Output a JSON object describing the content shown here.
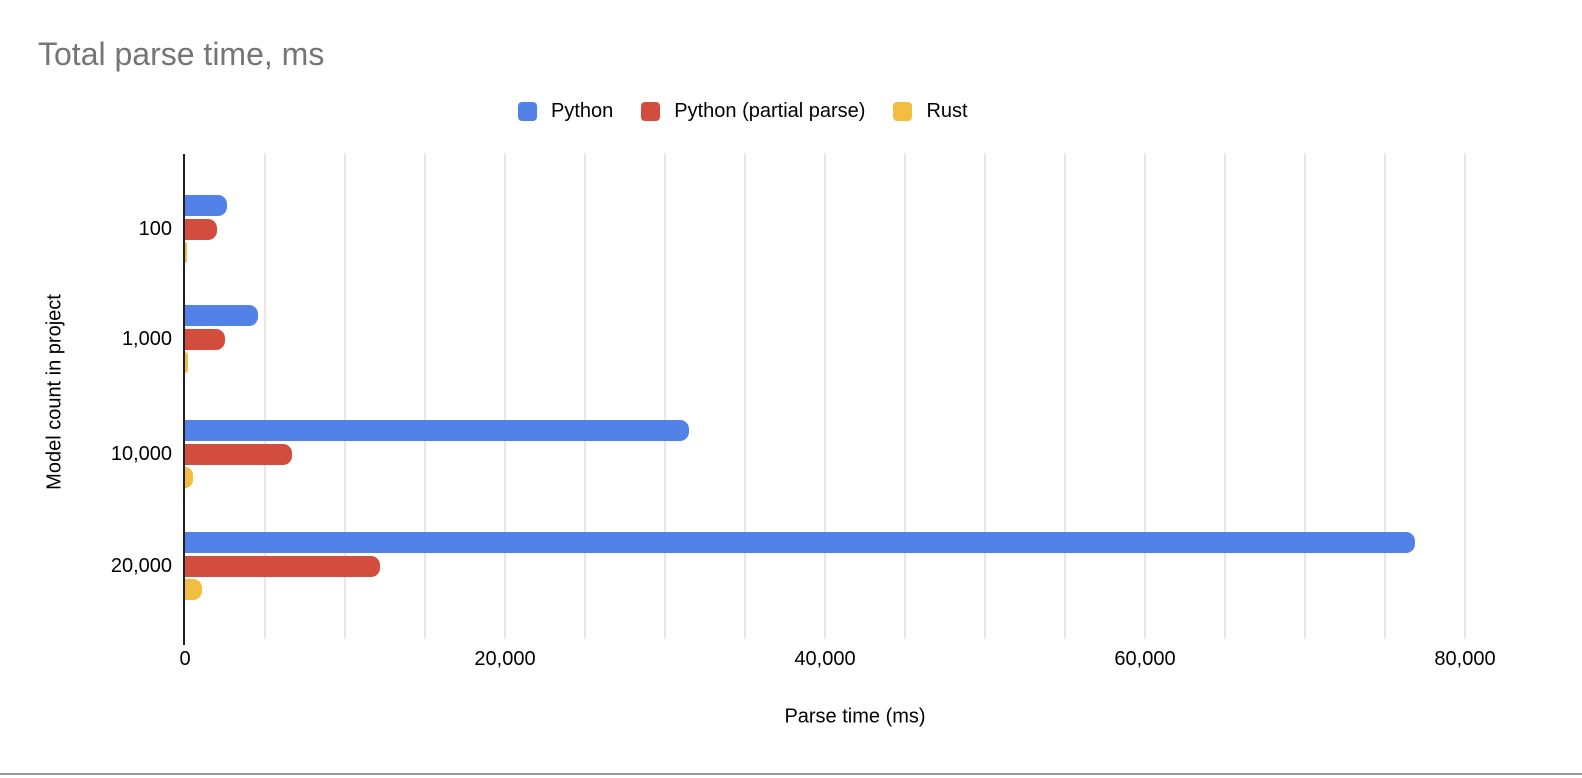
{
  "chart_data": {
    "type": "bar",
    "orientation": "horizontal",
    "title": "Total parse time, ms",
    "xlabel": "Parse time (ms)",
    "ylabel": "Model count in project",
    "categories": [
      "100",
      "1,000",
      "10,000",
      "20,000"
    ],
    "series": [
      {
        "name": "Python",
        "color": "#5282e7",
        "values": [
          2600,
          4550,
          31500,
          76900
        ]
      },
      {
        "name": "Python (partial parse)",
        "color": "#d24d3d",
        "values": [
          2000,
          2500,
          6700,
          12200
        ]
      },
      {
        "name": "Rust",
        "color": "#f1be42",
        "values": [
          130,
          160,
          500,
          1050
        ]
      }
    ],
    "xlim": [
      0,
      82500
    ],
    "x_major_tick_step": 20000,
    "x_minor_grid_step": 5000,
    "x_tick_labels": [
      "0",
      "20,000",
      "40,000",
      "60,000",
      "80,000"
    ],
    "grid": "vertical-minor-and-major",
    "legend_position": "top-center"
  },
  "page": {
    "title_color": "#757575",
    "text_color": "#000000",
    "gridline_color": "#e7e7e7",
    "axis_line_color": "#212121",
    "separator_color": "#9a9a9a"
  }
}
